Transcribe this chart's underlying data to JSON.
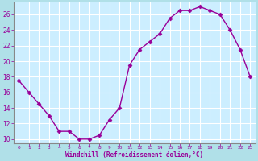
{
  "x": [
    0,
    1,
    2,
    3,
    4,
    5,
    6,
    7,
    8,
    9,
    10,
    11,
    12,
    13,
    14,
    15,
    16,
    17,
    18,
    19,
    20,
    21,
    22,
    23
  ],
  "y": [
    17.5,
    16.0,
    14.5,
    13.0,
    11.0,
    11.0,
    10.0,
    10.0,
    10.5,
    12.5,
    14.0,
    19.5,
    21.5,
    22.5,
    23.5,
    25.5,
    26.5,
    26.5,
    27.0,
    26.5,
    26.0,
    24.0,
    21.5,
    18.0
  ],
  "line_color": "#990099",
  "marker": "D",
  "marker_size": 2.5,
  "bg_color": "#b0e0e8",
  "plot_bg_color": "#cceeff",
  "grid_color": "#ffffff",
  "xlabel": "Windchill (Refroidissement éolien,°C)",
  "xlabel_color": "#990099",
  "tick_color": "#990099",
  "spine_color": "#888888",
  "ylim": [
    9.5,
    27.5
  ],
  "xlim": [
    -0.5,
    23.5
  ],
  "yticks": [
    10,
    12,
    14,
    16,
    18,
    20,
    22,
    24,
    26
  ],
  "xticks": [
    0,
    1,
    2,
    3,
    4,
    5,
    6,
    7,
    8,
    9,
    10,
    11,
    12,
    13,
    14,
    15,
    16,
    17,
    18,
    19,
    20,
    21,
    22,
    23
  ]
}
